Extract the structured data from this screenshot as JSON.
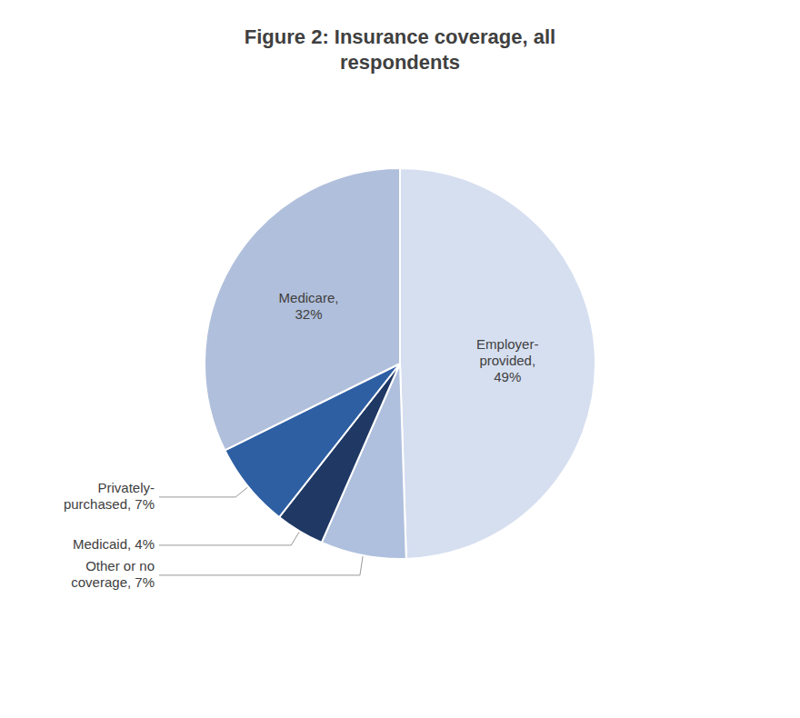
{
  "chart_data": {
    "type": "pie",
    "title": "Figure 2: Insurance coverage, all\nrespondents",
    "categories": [
      "Employer-\nprovided,\n49%",
      "Other or no\ncoverage, 7%",
      "Medicaid, 4%",
      "Privately-\npurchased, 7%",
      "Medicare,\n32%"
    ],
    "values": [
      49,
      7,
      4,
      7,
      32
    ],
    "colors": [
      "#d6dff0",
      "#afc0de",
      "#1f3864",
      "#2e5fa3",
      "#b0bfdb"
    ]
  }
}
